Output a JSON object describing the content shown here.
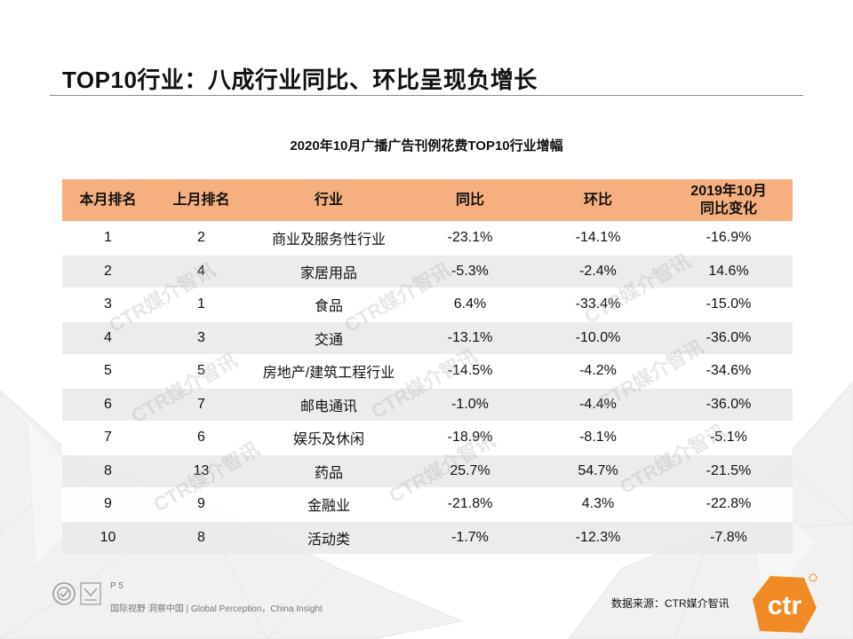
{
  "slide": {
    "title": "TOP10行业：八成行业同比、环比呈现负增长",
    "table_caption": "2020年10月广播广告刊例花费TOP10行业增幅"
  },
  "table": {
    "headers": [
      "本月排名",
      "上月排名",
      "行业",
      "同比",
      "环比",
      "2019年10月\n同比变化"
    ],
    "rows": [
      [
        "1",
        "2",
        "商业及服务性行业",
        "-23.1%",
        "-14.1%",
        "-16.9%"
      ],
      [
        "2",
        "4",
        "家居用品",
        "-5.3%",
        "-2.4%",
        "14.6%"
      ],
      [
        "3",
        "1",
        "食品",
        "6.4%",
        "-33.4%",
        "-15.0%"
      ],
      [
        "4",
        "3",
        "交通",
        "-13.1%",
        "-10.0%",
        "-36.0%"
      ],
      [
        "5",
        "5",
        "房地产/建筑工程行业",
        "-14.5%",
        "-4.2%",
        "-34.6%"
      ],
      [
        "6",
        "7",
        "邮电通讯",
        "-1.0%",
        "-4.4%",
        "-36.0%"
      ],
      [
        "7",
        "6",
        "娱乐及休闲",
        "-18.9%",
        "-8.1%",
        "-5.1%"
      ],
      [
        "8",
        "13",
        "药品",
        "25.7%",
        "54.7%",
        "-21.5%"
      ],
      [
        "9",
        "9",
        "金融业",
        "-21.8%",
        "4.3%",
        "-22.8%"
      ],
      [
        "10",
        "8",
        "活动类",
        "-1.7%",
        "-12.3%",
        "-7.8%"
      ]
    ]
  },
  "watermark": "CTR媒介智讯",
  "footer": {
    "page": "P 5",
    "slogan": "国际视野 洞察中国 | Global Perception，China Insight",
    "source": "数据来源：CTR媒介智讯",
    "logo_text": "ctr"
  },
  "colors": {
    "header_bg": "#f6b080",
    "stripe": "#eaeaea",
    "brand_orange": "#f08a24"
  }
}
